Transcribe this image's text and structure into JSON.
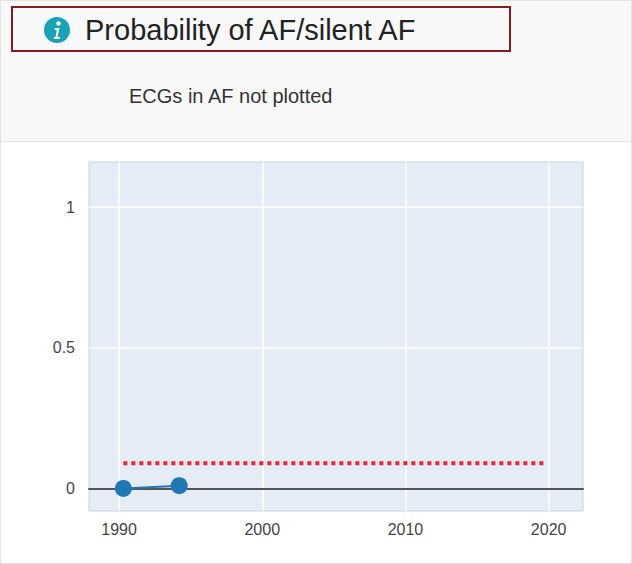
{
  "chart_data": {
    "type": "line",
    "title": "Probability of AF/silent AF",
    "subtitle": "ECGs in AF not plotted",
    "series": [
      {
        "x": [
          1990.3,
          1994.2
        ],
        "values": [
          0,
          0.01
        ],
        "color": "#1f77b4",
        "marker": "circle",
        "line_style": "solid"
      },
      {
        "x": [
          1990.3,
          2019.7
        ],
        "values": [
          0.09,
          0.09
        ],
        "color": "#e8232a",
        "marker": "none",
        "line_style": "dotted"
      }
    ],
    "xlim": [
      1987.9,
      2022.4
    ],
    "xticks": [
      1990,
      2000,
      2010,
      2020
    ],
    "ylim": [
      -0.08,
      1.16
    ],
    "yticks": [
      0,
      0.5,
      1
    ],
    "grid": true
  }
}
